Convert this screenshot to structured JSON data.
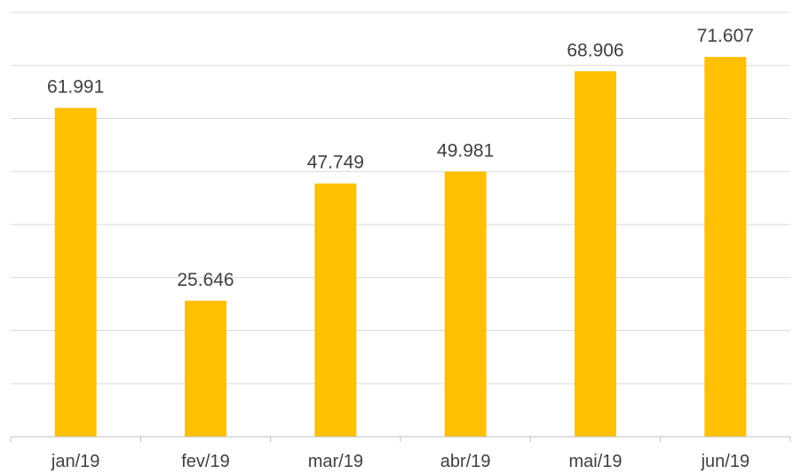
{
  "chart_data": {
    "type": "bar",
    "categories": [
      "jan/19",
      "fev/19",
      "mar/19",
      "abr/19",
      "mai/19",
      "jun/19"
    ],
    "values": [
      61991,
      25646,
      47749,
      49981,
      68906,
      71607
    ],
    "value_labels": [
      "61.991",
      "25.646",
      "47.749",
      "49.981",
      "68.906",
      "71.607"
    ],
    "title": "",
    "xlabel": "",
    "ylabel": "",
    "ylim": [
      0,
      80000
    ],
    "y_grid_step": 10000,
    "grid": true,
    "legend": "none",
    "colors": {
      "bar": "#ffc000",
      "grid": "#d9d9d9",
      "axis": "#bfbfbf",
      "text": "#404040"
    }
  }
}
